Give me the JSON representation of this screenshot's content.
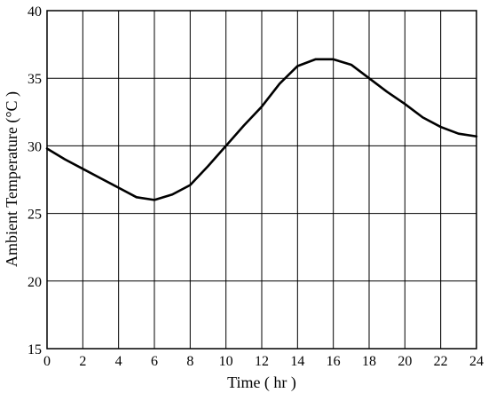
{
  "chart_data": {
    "type": "line",
    "title": "",
    "xlabel": "Time ( hr )",
    "ylabel": "Ambient Temperature (°C )",
    "xlim": [
      0,
      24
    ],
    "ylim": [
      15,
      40
    ],
    "x_ticks": [
      0,
      2,
      4,
      6,
      8,
      10,
      12,
      14,
      16,
      18,
      20,
      22,
      24
    ],
    "y_ticks": [
      15,
      20,
      25,
      30,
      35,
      40
    ],
    "grid": true,
    "legend": "none",
    "series": [
      {
        "color": "#000000",
        "x": [
          0,
          1,
          2,
          3,
          4,
          5,
          6,
          7,
          8,
          9,
          10,
          11,
          12,
          13,
          14,
          15,
          16,
          17,
          18,
          19,
          20,
          21,
          22,
          23,
          24
        ],
        "y": [
          29.8,
          29.0,
          28.3,
          27.6,
          26.9,
          26.2,
          26.0,
          26.4,
          27.1,
          28.5,
          30.0,
          31.5,
          32.9,
          34.6,
          35.9,
          36.4,
          36.4,
          36.0,
          35.0,
          34.0,
          33.1,
          32.1,
          31.4,
          30.9,
          30.7
        ]
      }
    ]
  }
}
